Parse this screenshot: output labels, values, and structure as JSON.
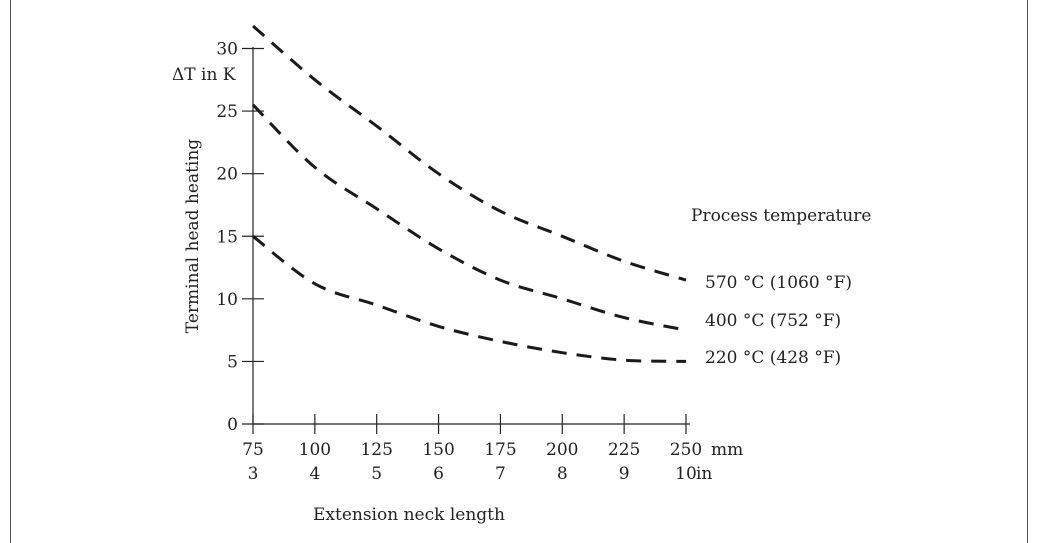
{
  "chart_data": {
    "type": "line",
    "title": "",
    "ylabel_top": "ΔT in K",
    "ylabel": "Terminal head heating",
    "xlabel": "Extension neck length",
    "x_unit_primary": "mm",
    "x_unit_secondary": "in",
    "xlim": [
      75,
      250
    ],
    "ylim": [
      0,
      30
    ],
    "x_ticks": [
      75,
      100,
      125,
      150,
      175,
      200,
      225,
      250
    ],
    "x_tick_labels_secondary": [
      "3",
      "4",
      "5",
      "6",
      "7",
      "8",
      "9",
      "10"
    ],
    "y_ticks": [
      0,
      5,
      10,
      15,
      20,
      25,
      30
    ],
    "grid": false,
    "legend_title": "Process temperature",
    "legend_placement": "right",
    "series": [
      {
        "name": "570 °C (1060 °F)",
        "x": [
          75,
          100,
          125,
          150,
          175,
          200,
          225,
          250
        ],
        "values": [
          31.8,
          27.5,
          23.8,
          20.0,
          17.0,
          15.0,
          13.0,
          11.5
        ]
      },
      {
        "name": "400 °C (752 °F)",
        "x": [
          75,
          100,
          125,
          150,
          175,
          200,
          225,
          250
        ],
        "values": [
          25.5,
          20.5,
          17.2,
          14.0,
          11.5,
          10.0,
          8.5,
          7.5
        ]
      },
      {
        "name": "220 °C (428 °F)",
        "x": [
          75,
          100,
          125,
          150,
          175,
          200,
          225,
          250
        ],
        "values": [
          15.0,
          11.2,
          9.5,
          7.8,
          6.6,
          5.7,
          5.1,
          5.0
        ]
      }
    ],
    "colors": {
      "axis": "#222222",
      "series": "#1a1a1a",
      "frame": "#555555"
    }
  }
}
